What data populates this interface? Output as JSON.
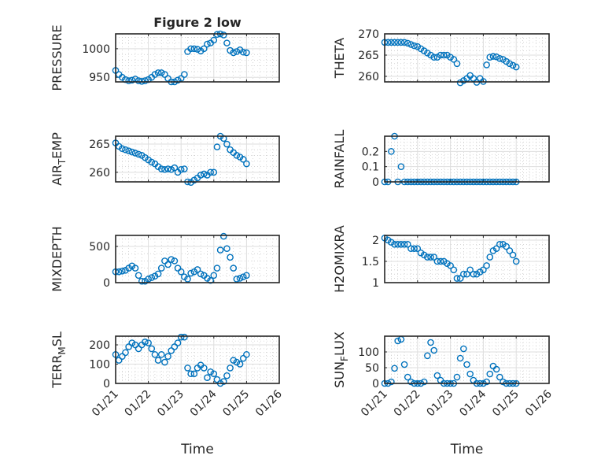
{
  "chart_data": [
    {
      "type": "scatter",
      "title": "Figure 2 low",
      "ylabel": "PRESSURE",
      "ylim": [
        942,
        1026
      ],
      "yticks": [
        950,
        1000
      ],
      "xlim_days": [
        0,
        5
      ],
      "values": [
        962,
        955,
        950,
        946,
        944,
        945,
        947,
        944,
        943,
        944,
        946,
        950,
        955,
        958,
        958,
        955,
        948,
        942,
        942,
        945,
        948,
        955,
        995,
        1000,
        1000,
        999,
        996,
        1000,
        1008,
        1010,
        1015,
        1025,
        1026,
        1024,
        1010,
        997,
        993,
        995,
        998,
        994,
        993
      ]
    },
    {
      "type": "scatter",
      "ylabel": "THETA",
      "ylim": [
        258.7,
        270
      ],
      "yticks": [
        260,
        265,
        270
      ],
      "values": [
        268,
        268,
        268,
        268,
        268,
        268,
        268,
        267.8,
        267.5,
        267.2,
        267,
        266.5,
        266,
        265.5,
        265,
        264.5,
        264.5,
        265,
        265,
        265,
        264.5,
        264,
        263,
        258.5,
        259,
        259.5,
        260.2,
        259.5,
        258.6,
        259.5,
        258.8,
        262.7,
        264.5,
        264.7,
        264.6,
        264.2,
        264,
        263.5,
        263,
        262.6,
        262.2
      ]
    },
    {
      "type": "scatter",
      "ylabel": "AIR_TEMP",
      "ylim": [
        258.3,
        266.4
      ],
      "yticks": [
        260,
        265
      ],
      "values": [
        265.2,
        264.6,
        264.2,
        264,
        263.8,
        263.6,
        263.4,
        263.2,
        263,
        262.6,
        262.2,
        261.8,
        261.5,
        261,
        260.6,
        260.5,
        260.6,
        260.5,
        260.8,
        260,
        260.5,
        260.6,
        258.3,
        258.2,
        258.6,
        259,
        259.5,
        259.7,
        259.5,
        260,
        260,
        264.5,
        266.4,
        266,
        265,
        264,
        263.5,
        263,
        262.7,
        262.3,
        261.5
      ]
    },
    {
      "type": "scatter",
      "ylabel": "RAINFALL",
      "ylim": [
        0,
        0.3
      ],
      "yticks": [
        0,
        0.1,
        0.2
      ],
      "ytick_labels": [
        "0",
        "0.1",
        "0.2"
      ],
      "values": [
        0,
        0,
        0.2,
        0.3,
        0,
        0.1,
        0,
        0,
        0,
        0,
        0,
        0,
        0,
        0,
        0,
        0,
        0,
        0,
        0,
        0,
        0,
        0,
        0,
        0,
        0,
        0,
        0,
        0,
        0,
        0,
        0,
        0,
        0,
        0,
        0,
        0,
        0,
        0,
        0,
        0,
        0
      ]
    },
    {
      "type": "scatter",
      "ylabel": "MIXDEPTH",
      "ylim": [
        0,
        652
      ],
      "yticks": [
        0,
        500
      ],
      "values": [
        150,
        150,
        160,
        170,
        200,
        230,
        200,
        100,
        20,
        20,
        50,
        70,
        90,
        120,
        200,
        300,
        250,
        320,
        300,
        200,
        150,
        80,
        50,
        130,
        150,
        180,
        120,
        100,
        60,
        30,
        100,
        200,
        450,
        640,
        470,
        350,
        200,
        50,
        60,
        80,
        100
      ]
    },
    {
      "type": "scatter",
      "ylabel": "H2OMIXRA",
      "ylim": [
        1,
        2.11
      ],
      "yticks": [
        1,
        1.5,
        2
      ],
      "ytick_labels": [
        "1",
        "1.5",
        "2"
      ],
      "values": [
        2.05,
        2,
        1.95,
        1.9,
        1.9,
        1.9,
        1.9,
        1.9,
        1.8,
        1.8,
        1.8,
        1.7,
        1.65,
        1.6,
        1.6,
        1.6,
        1.5,
        1.5,
        1.5,
        1.45,
        1.4,
        1.3,
        1.1,
        1.1,
        1.2,
        1.2,
        1.3,
        1.2,
        1.2,
        1.25,
        1.3,
        1.4,
        1.6,
        1.75,
        1.8,
        1.9,
        1.9,
        1.85,
        1.75,
        1.65,
        1.5
      ]
    },
    {
      "type": "scatter",
      "ylabel": "TERR_MSL",
      "ylim": [
        0,
        245
      ],
      "yticks": [
        0,
        100,
        200
      ],
      "xlabel": "Time",
      "values": [
        150,
        120,
        140,
        160,
        190,
        210,
        200,
        180,
        200,
        215,
        210,
        180,
        150,
        120,
        150,
        110,
        140,
        170,
        190,
        210,
        240,
        240,
        80,
        50,
        50,
        80,
        95,
        80,
        30,
        60,
        50,
        20,
        0,
        10,
        40,
        80,
        120,
        110,
        100,
        130,
        150
      ]
    },
    {
      "type": "scatter",
      "ylabel": "SUN_FLUX",
      "ylim": [
        0,
        150
      ],
      "yticks": [
        0,
        50,
        100
      ],
      "xlabel": "Time",
      "values": [
        0,
        0,
        5,
        48,
        135,
        140,
        60,
        20,
        5,
        0,
        0,
        0,
        5,
        88,
        130,
        105,
        25,
        10,
        0,
        0,
        0,
        0,
        20,
        80,
        110,
        60,
        30,
        10,
        0,
        0,
        0,
        5,
        30,
        55,
        45,
        20,
        5,
        0,
        0,
        0,
        0
      ]
    }
  ],
  "x_days": [
    0,
    0.1,
    0.2,
    0.3,
    0.4,
    0.5,
    0.6,
    0.7,
    0.8,
    0.9,
    1,
    1.1,
    1.2,
    1.3,
    1.4,
    1.5,
    1.6,
    1.7,
    1.8,
    1.9,
    2,
    2.1,
    2.2,
    2.3,
    2.4,
    2.5,
    2.6,
    2.7,
    2.8,
    2.9,
    3,
    3.1,
    3.2,
    3.3,
    3.4,
    3.5,
    3.6,
    3.7,
    3.8,
    3.9,
    4
  ],
  "xtick_labels": [
    "01/21",
    "01/22",
    "01/23",
    "01/24",
    "01/25",
    "01/26"
  ],
  "colors": {
    "marker": "#0072BD",
    "axis": "#262626",
    "grid": "#dedede"
  }
}
